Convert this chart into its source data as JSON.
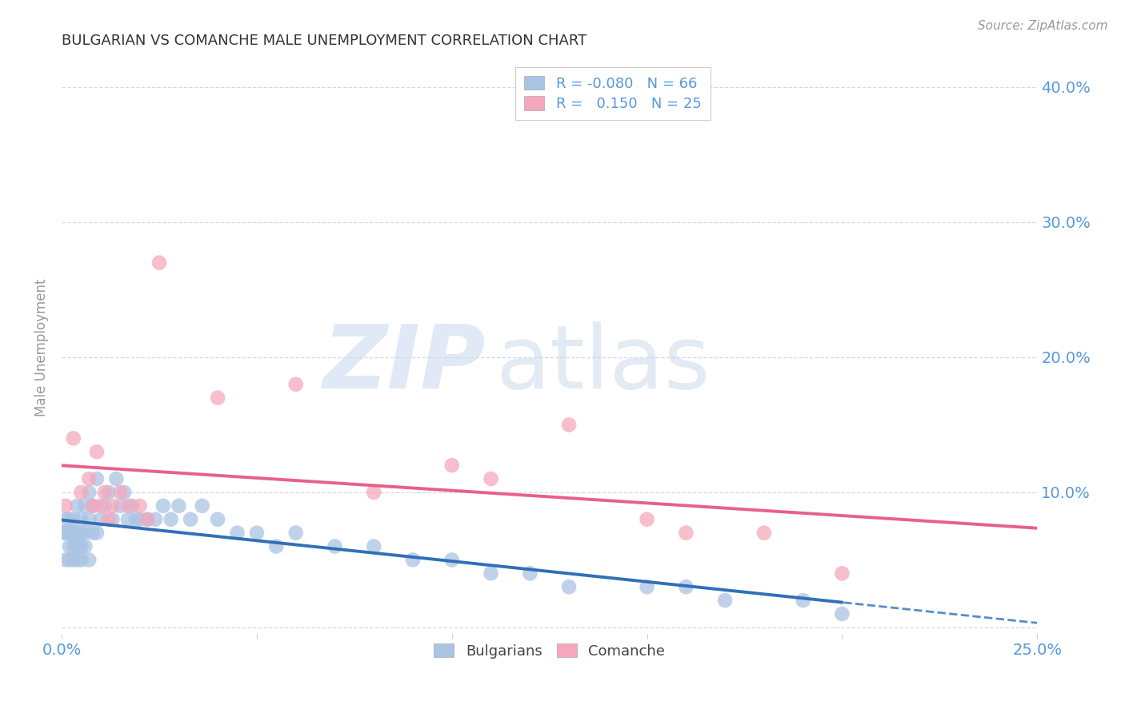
{
  "title": "BULGARIAN VS COMANCHE MALE UNEMPLOYMENT CORRELATION CHART",
  "source": "Source: ZipAtlas.com",
  "ylabel": "Male Unemployment",
  "xlim": [
    0.0,
    0.25
  ],
  "ylim": [
    -0.005,
    0.42
  ],
  "xticks": [
    0.0,
    0.05,
    0.1,
    0.15,
    0.2,
    0.25
  ],
  "xtick_labels": [
    "0.0%",
    "",
    "",
    "",
    "",
    "25.0%"
  ],
  "yticks": [
    0.0,
    0.1,
    0.2,
    0.3,
    0.4
  ],
  "ytick_labels_right": [
    "",
    "10.0%",
    "20.0%",
    "30.0%",
    "40.0%"
  ],
  "bg_color": "#ffffff",
  "grid_color": "#d8d8e8",
  "legend_R_blue": "-0.080",
  "legend_N_blue": "66",
  "legend_R_pink": " 0.150",
  "legend_N_pink": "25",
  "blue_color": "#aac4e4",
  "pink_color": "#f5a8bc",
  "blue_line_color": "#3070b8",
  "pink_line_color": "#e8608a",
  "axis_label_color": "#5599dd",
  "title_color": "#333333",
  "source_color": "#999999",
  "ylabel_color": "#999999",
  "bulgarians_x": [
    0.0005,
    0.001,
    0.001,
    0.001,
    0.002,
    0.002,
    0.002,
    0.002,
    0.003,
    0.003,
    0.003,
    0.003,
    0.003,
    0.004,
    0.004,
    0.004,
    0.004,
    0.005,
    0.005,
    0.005,
    0.005,
    0.006,
    0.006,
    0.006,
    0.007,
    0.007,
    0.007,
    0.008,
    0.008,
    0.009,
    0.009,
    0.01,
    0.011,
    0.012,
    0.013,
    0.014,
    0.015,
    0.016,
    0.017,
    0.018,
    0.019,
    0.02,
    0.022,
    0.024,
    0.026,
    0.028,
    0.03,
    0.033,
    0.036,
    0.04,
    0.045,
    0.05,
    0.055,
    0.06,
    0.07,
    0.08,
    0.09,
    0.1,
    0.11,
    0.12,
    0.13,
    0.15,
    0.16,
    0.17,
    0.19,
    0.2
  ],
  "bulgarians_y": [
    0.07,
    0.05,
    0.07,
    0.08,
    0.05,
    0.06,
    0.07,
    0.08,
    0.05,
    0.06,
    0.07,
    0.07,
    0.08,
    0.05,
    0.06,
    0.07,
    0.09,
    0.05,
    0.06,
    0.07,
    0.08,
    0.06,
    0.07,
    0.09,
    0.05,
    0.08,
    0.1,
    0.07,
    0.09,
    0.07,
    0.11,
    0.08,
    0.09,
    0.1,
    0.08,
    0.11,
    0.09,
    0.1,
    0.08,
    0.09,
    0.08,
    0.08,
    0.08,
    0.08,
    0.09,
    0.08,
    0.09,
    0.08,
    0.09,
    0.08,
    0.07,
    0.07,
    0.06,
    0.07,
    0.06,
    0.06,
    0.05,
    0.05,
    0.04,
    0.04,
    0.03,
    0.03,
    0.03,
    0.02,
    0.02,
    0.01
  ],
  "comanche_x": [
    0.001,
    0.003,
    0.005,
    0.007,
    0.008,
    0.009,
    0.01,
    0.011,
    0.012,
    0.013,
    0.015,
    0.017,
    0.02,
    0.022,
    0.025,
    0.04,
    0.06,
    0.08,
    0.1,
    0.11,
    0.13,
    0.15,
    0.16,
    0.18,
    0.2
  ],
  "comanche_y": [
    0.09,
    0.14,
    0.1,
    0.11,
    0.09,
    0.13,
    0.09,
    0.1,
    0.08,
    0.09,
    0.1,
    0.09,
    0.09,
    0.08,
    0.27,
    0.17,
    0.18,
    0.1,
    0.12,
    0.11,
    0.15,
    0.08,
    0.07,
    0.07,
    0.04
  ]
}
